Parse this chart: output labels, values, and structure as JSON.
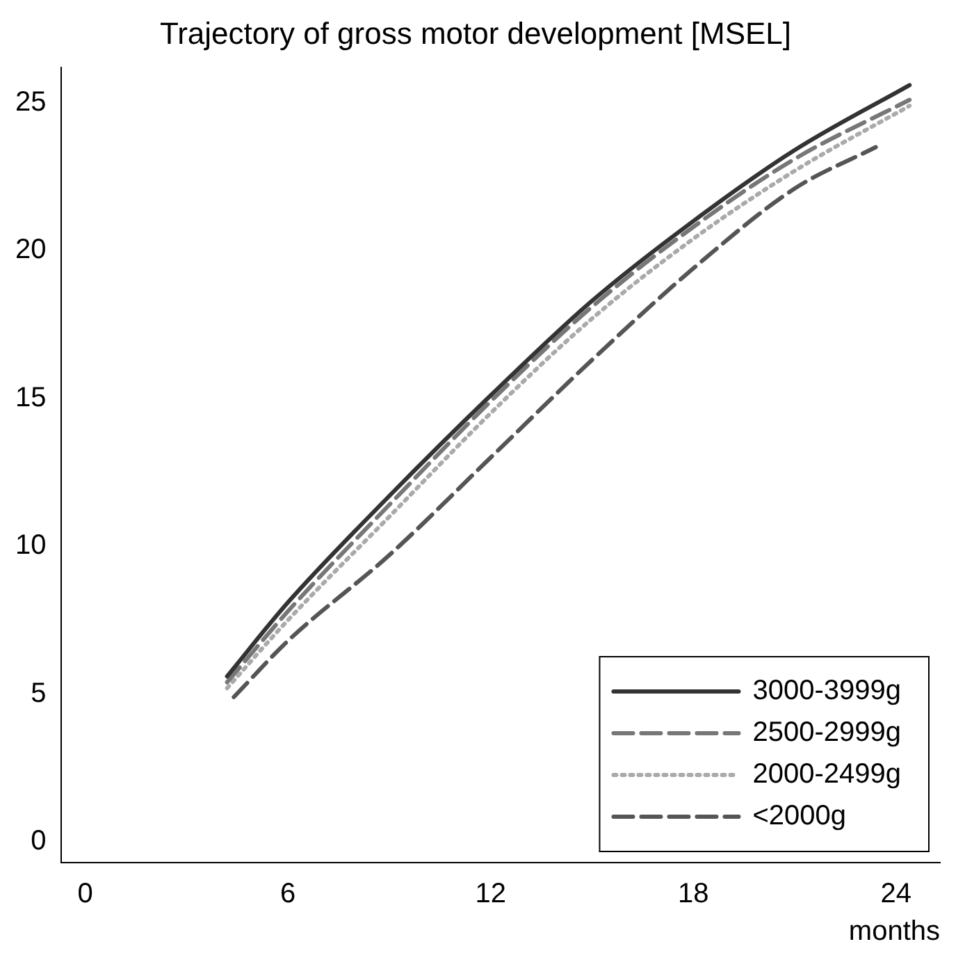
{
  "chart_data": {
    "type": "line",
    "title": "Trajectory of gross motor development [MSEL]",
    "xlabel": "months",
    "xlim": [
      -0.7,
      25.3
    ],
    "xticks": [
      0,
      6,
      12,
      18,
      24
    ],
    "ylim": [
      -0.7,
      26.2
    ],
    "yticks": [
      0,
      5,
      10,
      15,
      20,
      25
    ],
    "grid": false,
    "legend": "bottom right",
    "marker": "none",
    "series": [
      {
        "name": "3000-3999g",
        "color": "#333333",
        "line_style": "solid",
        "x": [
          4.2,
          6,
          9,
          12,
          15,
          18,
          21,
          24.4
        ],
        "values": [
          5.6,
          8.1,
          11.7,
          15.1,
          18.3,
          21.0,
          23.4,
          25.6
        ]
      },
      {
        "name": "2500-2999g",
        "color": "#777777",
        "line_style": "dashed",
        "x": [
          4.2,
          6,
          9,
          12,
          15,
          18,
          21,
          24.4
        ],
        "values": [
          5.4,
          7.8,
          11.4,
          14.9,
          18.1,
          20.8,
          23.1,
          25.1
        ]
      },
      {
        "name": "2000-2499g",
        "color": "#aaaaaa",
        "line_style": "dotted",
        "x": [
          4.2,
          6,
          9,
          12,
          15,
          18,
          21,
          24.4
        ],
        "values": [
          5.2,
          7.5,
          11.0,
          14.5,
          17.7,
          20.4,
          22.7,
          24.9
        ]
      },
      {
        "name": "<2000g",
        "color": "#555555",
        "line_style": "dashed",
        "x": [
          4.4,
          6,
          9,
          12,
          15,
          18,
          21,
          23.4
        ],
        "values": [
          4.9,
          6.8,
          9.7,
          13.0,
          16.3,
          19.4,
          22.1,
          23.5
        ]
      }
    ]
  }
}
